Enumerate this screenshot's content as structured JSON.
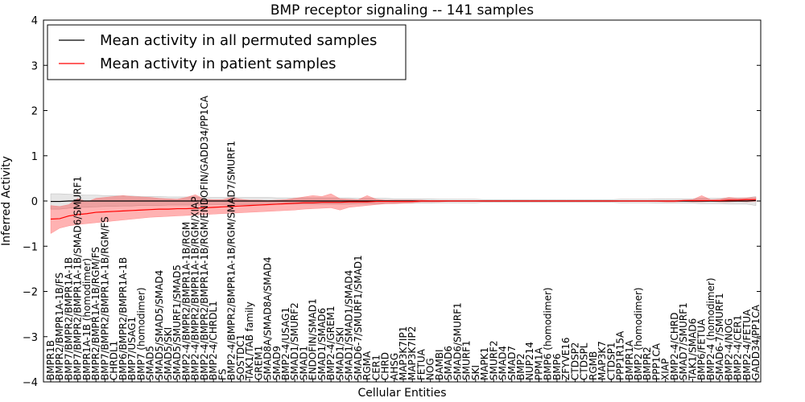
{
  "chart_data": {
    "type": "line",
    "title": "BMP receptor signaling -- 141 samples",
    "xlabel": "Cellular Entities",
    "ylabel": "Inferred Activity",
    "ylim": [
      -4,
      4
    ],
    "yticks": [
      -4,
      -3,
      -2,
      -1,
      0,
      1,
      2,
      3,
      4
    ],
    "grid": false,
    "legend_position": "top-left",
    "categories": [
      "BMPR1B",
      "BMPR2/BMPR1A-1B/FS",
      "BMP7/BMPR2/BMPR1A-1B",
      "BMP7/BMPR2/BMPR1A-1B/SMAD6/SMURF1",
      "BMPR1A-1B (homodimer)",
      "BMPR2/BMPR1A-1B/RGM/FS",
      "BMP7/BMPR2/BMPR1A-1B/RGM/FS",
      "CHRDL1",
      "BMP6/BMPR2/BMPR1A-1B",
      "BMP7/USAG1",
      "BMP7 (homodimer)",
      "SMAD5",
      "SMAD5/SMAD5/SMAD4",
      "SMAD5/SKI",
      "SMAD5/SMURF1/SMAD5",
      "BMP2-4/BMPR2/BMPR1A-1B/RGM",
      "BMP2-4/BMPR2/BMPR1A-1B/RGM/XIAP",
      "BMP2-4/BMPR2/BMPR1A-1B/RGM/ENDOFIN/GADD34/PP1CA",
      "BMP2-4/CHRDL1",
      "FS",
      "BMP2-4/BMPR2/BMPR1A-1B/RGM/SMAD7/SMURF1",
      "SOSTDC1",
      "TAK1/TAB family",
      "GREM1",
      "SMAD8A/SMAD8A/SMAD4",
      "SMAD9",
      "BMP2-4/USAG1",
      "SMAD1/SMURF2",
      "SMAD1",
      "ENDOFIN/SMAD1",
      "SMAD1/SMAD6",
      "BMP2-4/GREM1",
      "SMAD1/SKI",
      "SMAD1/SMAD1/SMAD4",
      "SMAD6-7/SMURF1/SMAD1",
      "RGMA",
      "CER1",
      "CHRD",
      "AHSG",
      "MAP3K7IP1",
      "MAP3K7IP2",
      "FETUA",
      "NOG",
      "BAMBI",
      "SMAD6",
      "SMAD6/SMURF1",
      "SMURF1",
      "SKI",
      "MAPK1",
      "SMURF2",
      "SMAD4",
      "SMAD7",
      "BMP2",
      "NUP214",
      "PPM1A",
      "BMP6 (homodimer)",
      "BMP6",
      "ZFYVE16",
      "CTDSP2",
      "CTDSPL",
      "RGMB",
      "MAP3K7",
      "CTDSP1",
      "PPP1R15A",
      "BMPR1A",
      "BMP2 (homodimer)",
      "BMPR2",
      "PPP1CA",
      "XIAP",
      "BMP2-4/CHRD",
      "SMAD7/SMURF1",
      "TAK1/SMAD6",
      "BMP6/FETUA",
      "BMP2-4 (homodimer)",
      "SMAD6-7/SMURF1",
      "BMP2-4/NOG",
      "BMP2-4/CER1",
      "BMP2-4/FETUA",
      "GADD34/PP1CA"
    ],
    "series": [
      {
        "name": "Mean activity in all permuted samples",
        "color": "#000000",
        "values": [
          -0.01,
          -0.01,
          0,
          0,
          0,
          0,
          0,
          0,
          0,
          0,
          0,
          0,
          0,
          0,
          0,
          0,
          0,
          0,
          0,
          0,
          0,
          0,
          0,
          0,
          0,
          0,
          0,
          0,
          0,
          0,
          0,
          0,
          0,
          0,
          0,
          0,
          0,
          0,
          0,
          0,
          0,
          0,
          0,
          0,
          0,
          0,
          0,
          0,
          0,
          0,
          0,
          0,
          0,
          0,
          0,
          0,
          0,
          0,
          0,
          0,
          0,
          0,
          0,
          0,
          0,
          0,
          0,
          0,
          0,
          0,
          0,
          0,
          0,
          0,
          0,
          0,
          0,
          0,
          0.01
        ],
        "band_lower": [
          -0.18,
          -0.18,
          -0.16,
          -0.14,
          -0.14,
          -0.13,
          -0.12,
          -0.12,
          -0.11,
          -0.11,
          -0.1,
          -0.1,
          -0.1,
          -0.09,
          -0.09,
          -0.09,
          -0.09,
          -0.08,
          -0.08,
          -0.08,
          -0.08,
          -0.08,
          -0.08,
          -0.08,
          -0.08,
          -0.07,
          -0.07,
          -0.07,
          -0.07,
          -0.07,
          -0.07,
          -0.07,
          -0.07,
          -0.07,
          -0.06,
          -0.06,
          -0.06,
          -0.06,
          -0.05,
          -0.05,
          -0.05,
          -0.05,
          -0.05,
          -0.04,
          -0.04,
          -0.04,
          -0.04,
          -0.04,
          -0.03,
          -0.03,
          -0.03,
          -0.03,
          -0.03,
          -0.03,
          -0.03,
          -0.03,
          -0.03,
          -0.03,
          -0.03,
          -0.03,
          -0.03,
          -0.03,
          -0.03,
          -0.04,
          -0.04,
          -0.04,
          -0.04,
          -0.05,
          -0.05,
          -0.05,
          -0.05,
          -0.05,
          -0.06,
          -0.06,
          -0.06,
          -0.07,
          -0.07,
          -0.07,
          -0.1
        ],
        "band_upper": [
          0.16,
          0.16,
          0.15,
          0.14,
          0.13,
          0.13,
          0.12,
          0.12,
          0.11,
          0.11,
          0.1,
          0.1,
          0.1,
          0.09,
          0.09,
          0.09,
          0.09,
          0.08,
          0.08,
          0.08,
          0.08,
          0.08,
          0.08,
          0.08,
          0.08,
          0.07,
          0.07,
          0.07,
          0.07,
          0.07,
          0.07,
          0.07,
          0.07,
          0.07,
          0.06,
          0.06,
          0.06,
          0.06,
          0.05,
          0.05,
          0.05,
          0.05,
          0.05,
          0.04,
          0.04,
          0.04,
          0.04,
          0.04,
          0.03,
          0.03,
          0.03,
          0.03,
          0.03,
          0.03,
          0.03,
          0.03,
          0.03,
          0.03,
          0.03,
          0.03,
          0.03,
          0.03,
          0.03,
          0.04,
          0.04,
          0.04,
          0.04,
          0.05,
          0.05,
          0.05,
          0.05,
          0.05,
          0.06,
          0.06,
          0.06,
          0.07,
          0.07,
          0.07,
          0.1
        ]
      },
      {
        "name": "Mean activity in patient samples",
        "color": "#ff0000",
        "values": [
          -0.4,
          -0.39,
          -0.33,
          -0.3,
          -0.28,
          -0.25,
          -0.24,
          -0.23,
          -0.22,
          -0.21,
          -0.2,
          -0.19,
          -0.18,
          -0.18,
          -0.17,
          -0.17,
          -0.16,
          -0.15,
          -0.14,
          -0.13,
          -0.12,
          -0.11,
          -0.1,
          -0.09,
          -0.08,
          -0.07,
          -0.06,
          -0.05,
          -0.04,
          -0.04,
          -0.03,
          -0.03,
          -0.03,
          -0.02,
          -0.02,
          -0.02,
          -0.01,
          -0.01,
          -0.01,
          -0.01,
          -0.01,
          0,
          0,
          0,
          0,
          0,
          0,
          0,
          0,
          0,
          0,
          0,
          0,
          0,
          0,
          0,
          0,
          0,
          0,
          0,
          0,
          0,
          0,
          0,
          0,
          0,
          0,
          0,
          0,
          0,
          0.01,
          0.01,
          0.01,
          0.01,
          0.01,
          0.02,
          0.02,
          0.03,
          0.03
        ],
        "band_lower": [
          -0.72,
          -0.6,
          -0.55,
          -0.52,
          -0.5,
          -0.48,
          -0.46,
          -0.44,
          -0.42,
          -0.4,
          -0.38,
          -0.36,
          -0.35,
          -0.34,
          -0.33,
          -0.32,
          -0.31,
          -0.3,
          -0.29,
          -0.28,
          -0.27,
          -0.26,
          -0.25,
          -0.24,
          -0.23,
          -0.22,
          -0.21,
          -0.2,
          -0.18,
          -0.17,
          -0.16,
          -0.15,
          -0.2,
          -0.14,
          -0.12,
          -0.1,
          -0.08,
          -0.06,
          -0.06,
          -0.05,
          -0.04,
          -0.02,
          -0.02,
          -0.02,
          -0.01,
          -0.01,
          -0.01,
          -0.01,
          -0.01,
          -0.01,
          -0.01,
          -0.01,
          -0.01,
          -0.01,
          -0.01,
          -0.01,
          -0.01,
          -0.01,
          -0.01,
          -0.01,
          -0.01,
          -0.01,
          -0.01,
          -0.01,
          -0.01,
          -0.01,
          -0.01,
          -0.01,
          -0.02,
          -0.02,
          -0.01,
          -0.02,
          -0.02,
          -0.01,
          -0.02,
          -0.02,
          -0.01,
          -0.02,
          -0.01
        ],
        "band_upper": [
          -0.1,
          -0.12,
          -0.08,
          0.06,
          -0.02,
          0.06,
          0.08,
          0.1,
          0.12,
          0.1,
          0.09,
          0.08,
          0.06,
          0.05,
          0.04,
          0.08,
          0.14,
          0.04,
          0.03,
          0.03,
          0.08,
          0.04,
          0.02,
          0.02,
          0.01,
          0.02,
          0.03,
          0.06,
          0.09,
          0.12,
          0.1,
          0.16,
          0.05,
          0.04,
          0.03,
          0.12,
          0.04,
          0.02,
          0.02,
          0.02,
          0.02,
          0.02,
          0.01,
          0.01,
          0.01,
          0.01,
          0.01,
          0.01,
          0.01,
          0.01,
          0.01,
          0.01,
          0.01,
          0.01,
          0.01,
          0.01,
          0.01,
          0.01,
          0.01,
          0.01,
          0.01,
          0.01,
          0.01,
          0.01,
          0.01,
          0.01,
          0.01,
          0.01,
          0.01,
          0.01,
          0.02,
          0.03,
          0.12,
          0.03,
          0.04,
          0.08,
          0.06,
          0.07,
          0.08
        ]
      }
    ]
  }
}
